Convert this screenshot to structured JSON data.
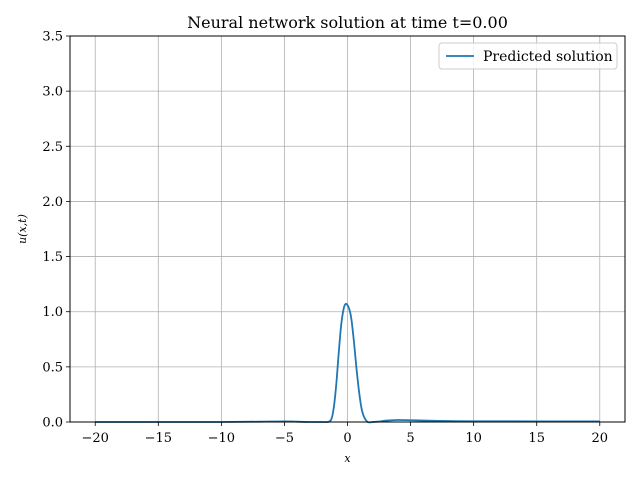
{
  "chart_data": {
    "type": "line",
    "title": "Neural network solution at time t=0.00",
    "xlabel": "x",
    "ylabel": "u(x,t)",
    "xlim": [
      -22,
      22
    ],
    "ylim": [
      0,
      3.5
    ],
    "xticks": [
      -20,
      -15,
      -10,
      -5,
      0,
      5,
      10,
      15,
      20
    ],
    "xtick_labels": [
      "−20",
      "−15",
      "−10",
      "−5",
      "0",
      "5",
      "10",
      "15",
      "20"
    ],
    "yticks": [
      0.0,
      0.5,
      1.0,
      1.5,
      2.0,
      2.5,
      3.0,
      3.5
    ],
    "ytick_labels": [
      "0.0",
      "0.5",
      "1.0",
      "1.5",
      "2.0",
      "2.5",
      "3.0",
      "3.5"
    ],
    "grid": true,
    "legend_position": "top-right",
    "series": [
      {
        "name": "Predicted solution",
        "color": "#1f77b4",
        "x": [
          -20,
          -15,
          -10,
          -7,
          -5,
          -4,
          -3,
          -2,
          -1.6,
          -1.3,
          -1.1,
          -0.9,
          -0.7,
          -0.5,
          -0.3,
          -0.15,
          0,
          0.15,
          0.3,
          0.5,
          0.7,
          0.9,
          1.1,
          1.3,
          1.6,
          2,
          2.5,
          3,
          4,
          5,
          6,
          8,
          10,
          15,
          20
        ],
        "y": [
          0.0,
          0.0,
          0.0,
          0.003,
          0.006,
          0.003,
          0.0,
          0.0,
          0.0,
          0.02,
          0.12,
          0.33,
          0.62,
          0.88,
          1.03,
          1.07,
          1.06,
          1.02,
          0.94,
          0.74,
          0.5,
          0.29,
          0.13,
          0.05,
          0.0,
          0.0,
          0.004,
          0.012,
          0.018,
          0.016,
          0.013,
          0.009,
          0.007,
          0.006,
          0.006
        ]
      }
    ]
  }
}
